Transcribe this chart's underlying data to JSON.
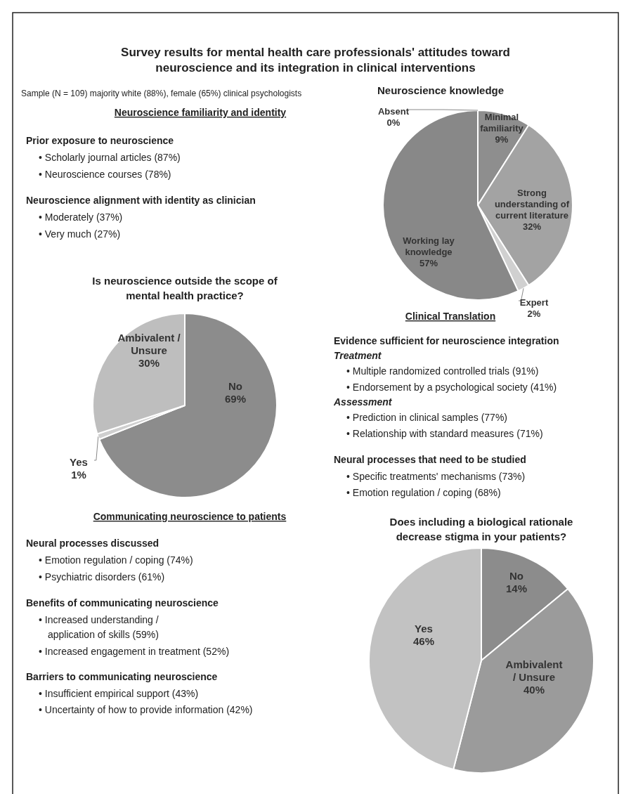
{
  "chart_data": [
    {
      "type": "other",
      "title": "Survey results for mental health care professionals' attitudes toward neuroscience and its integration in clinical interventions",
      "subtitle": "Sample (N = 109) majority white (88%), female (65%) clinical psychologists",
      "annotations": [
        "Neuroscience familiarity and identity",
        "Prior exposure to neuroscience",
        "• Scholarly journal articles (87%)",
        "• Neuroscience courses (78%)",
        "Neuroscience alignment with identity as clinician",
        "• Moderately (37%)",
        "• Very much (27%)"
      ]
    },
    {
      "type": "pie",
      "title": "Neuroscience knowledge",
      "categories": [
        "Absent",
        "Minimal familiarity",
        "Strong understanding of current literature",
        "Expert",
        "Working lay knowledge"
      ],
      "values": [
        0,
        9,
        32,
        2,
        57
      ],
      "value_labels": [
        "0%",
        "9%",
        "32%",
        "2%",
        "57%"
      ],
      "colors": [
        "#d9d9d9",
        "#8e8e8e",
        "#a3a3a3",
        "#d0d0d0",
        "#888888"
      ]
    },
    {
      "type": "pie",
      "title": "Is neuroscience outside the scope of mental health practice?",
      "categories": [
        "No",
        "Yes",
        "Ambivalent / Unsure"
      ],
      "values": [
        69,
        1,
        30
      ],
      "value_labels": [
        "69%",
        "1%",
        "30%"
      ],
      "colors": [
        "#8c8c8c",
        "#cfcfcf",
        "#bebebe"
      ]
    },
    {
      "type": "other",
      "title": "Clinical Translation",
      "annotations": [
        "Evidence sufficient for neuroscience integration",
        "Treatment",
        "• Multiple randomized controlled trials (91%)",
        "• Endorsement by a psychological society (41%)",
        "Assessment",
        "• Prediction in clinical samples (77%)",
        "• Relationship with standard measures (71%)",
        "Neural processes that need to be studied",
        "• Specific treatments' mechanisms (73%)",
        "• Emotion regulation / coping (68%)"
      ]
    },
    {
      "type": "other",
      "title": "Communicating neuroscience to patients",
      "annotations": [
        "Neural processes discussed",
        "• Emotion regulation / coping (74%)",
        "• Psychiatric disorders (61%)",
        "Benefits of communicating neuroscience",
        "• Increased understanding /",
        "application of skills (59%)",
        "• Increased engagement in treatment (52%)",
        "Barriers to communicating neuroscience",
        "• Insufficient empirical support (43%)",
        "• Uncertainty of how to provide information (42%)"
      ]
    },
    {
      "type": "pie",
      "title": "Does including a biological rationale decrease stigma in your patients?",
      "categories": [
        "No",
        "Ambivalent / Unsure",
        "Yes"
      ],
      "values": [
        14,
        40,
        46
      ],
      "value_labels": [
        "14%",
        "40%",
        "46%"
      ],
      "colors": [
        "#8c8c8c",
        "#9b9b9b",
        "#c2c2c2"
      ]
    }
  ]
}
